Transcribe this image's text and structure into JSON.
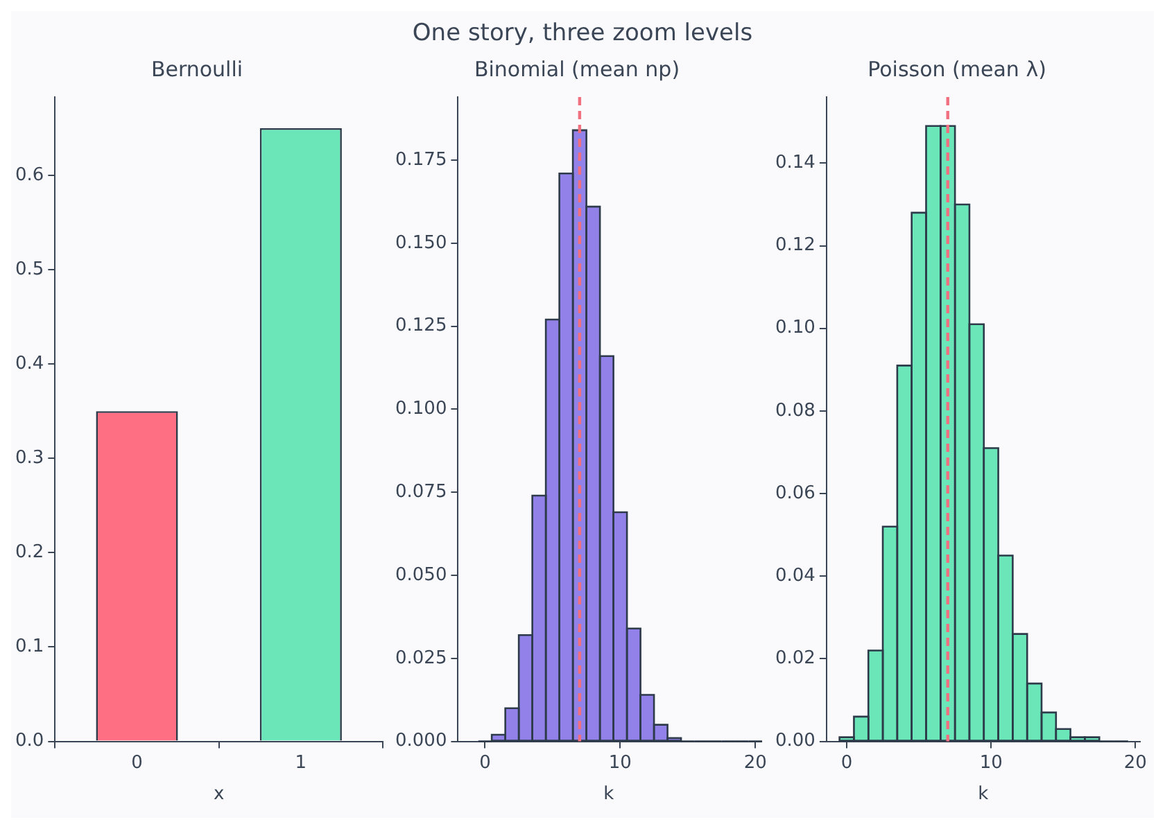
{
  "chart_data": [
    {
      "type": "bar",
      "title": "Bernoulli",
      "annotations": [
        "One story, three zoom levels"
      ],
      "xlabel": "x",
      "categories": [
        "0",
        "1"
      ],
      "values": [
        0.35,
        0.65
      ],
      "colors": [
        "#ff6f83",
        "#6ae6b8"
      ],
      "ylim": [
        0,
        0.683
      ],
      "yticks": [
        {
          "value": 0,
          "label": "0.0"
        },
        0.1,
        0.2,
        0.3,
        0.4,
        0.5,
        0.6
      ]
    },
    {
      "type": "histogram",
      "title": "Binomial (mean np)",
      "xlabel": "k",
      "color": "#9381ea",
      "bins": [
        -0.5,
        0.5,
        1.5,
        2.5,
        3.5,
        4.5,
        5.5,
        6.5,
        7.5,
        8.5,
        9.5,
        10.5,
        11.5,
        12.5,
        13.5,
        14.5,
        15.5,
        16.5,
        17.5,
        18.5,
        19.5,
        20.5
      ],
      "values": [
        0.0,
        0.002,
        0.01,
        0.032,
        0.074,
        0.127,
        0.171,
        0.184,
        0.161,
        0.116,
        0.069,
        0.034,
        0.014,
        0.005,
        0.001,
        0.0,
        0.0,
        0.0,
        0.0,
        0.0,
        0.0
      ],
      "xlim": [
        -2,
        20.3
      ],
      "xticks": [
        0,
        10,
        20
      ],
      "ylim": [
        0,
        0.194
      ],
      "yticks": [
        {
          "value": 0,
          "label": "0.000"
        },
        {
          "value": 0.025,
          "label": "0.025"
        },
        {
          "value": 0.05,
          "label": "0.050"
        },
        {
          "value": 0.075,
          "label": "0.075"
        },
        {
          "value": 0.1,
          "label": "0.100"
        },
        {
          "value": 0.125,
          "label": "0.125"
        },
        {
          "value": 0.15,
          "label": "0.150"
        },
        {
          "value": 0.175,
          "label": "0.175"
        }
      ],
      "ref_lines": [
        {
          "axis": "x",
          "value": 7,
          "color": "#f07080",
          "line_style": "dashed"
        }
      ]
    },
    {
      "type": "histogram",
      "title": "Poisson (mean λ)",
      "xlabel": "k",
      "color": "#6ae6b8",
      "bins": [
        -0.5,
        0.5,
        1.5,
        2.5,
        3.5,
        4.5,
        5.5,
        6.5,
        7.5,
        8.5,
        9.5,
        10.5,
        11.5,
        12.5,
        13.5,
        14.5,
        15.5,
        16.5,
        17.5,
        18.5,
        19.5
      ],
      "values": [
        0.001,
        0.006,
        0.022,
        0.052,
        0.091,
        0.128,
        0.149,
        0.149,
        0.13,
        0.101,
        0.071,
        0.045,
        0.026,
        0.014,
        0.007,
        0.003,
        0.001,
        0.001,
        0.0,
        0.0
      ],
      "xlim": [
        -1.4,
        20.3
      ],
      "xticks": [
        0,
        10,
        20
      ],
      "ylim": [
        0,
        0.156
      ],
      "yticks": [
        {
          "value": 0,
          "label": "0.00"
        },
        {
          "value": 0.02,
          "label": "0.02"
        },
        {
          "value": 0.04,
          "label": "0.04"
        },
        {
          "value": 0.06,
          "label": "0.06"
        },
        {
          "value": 0.08,
          "label": "0.08"
        },
        {
          "value": 0.1,
          "label": "0.10"
        },
        {
          "value": 0.12,
          "label": "0.12"
        },
        {
          "value": 0.14,
          "label": "0.14"
        }
      ],
      "ref_lines": [
        {
          "axis": "x",
          "value": 7,
          "color": "#f07080",
          "line_style": "dashed"
        }
      ]
    }
  ]
}
